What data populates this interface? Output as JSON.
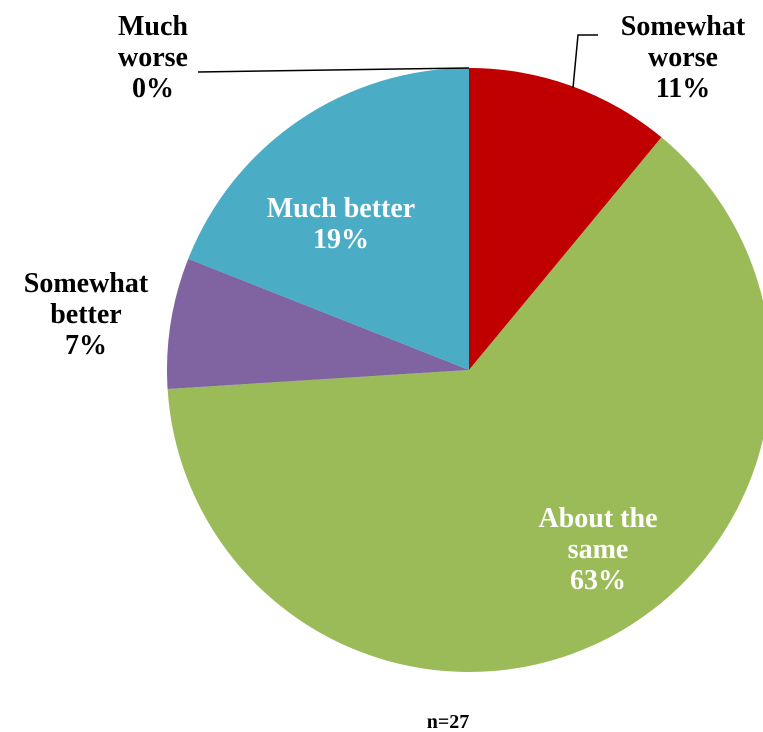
{
  "chart_data": {
    "type": "pie",
    "categories": [
      "Much worse",
      "Somewhat worse",
      "About the same",
      "Somewhat better",
      "Much better"
    ],
    "values": [
      0,
      11,
      63,
      7,
      19
    ],
    "value_labels": [
      "0%",
      "11%",
      "63%",
      "7%",
      "19%"
    ],
    "colors": [
      "#4bacc6",
      "#c00000",
      "#9bbb59",
      "#8064a2",
      "#4bacc6"
    ],
    "start": "12 o'clock",
    "direction": "clockwise",
    "legend": "none",
    "note": "n=27"
  }
}
